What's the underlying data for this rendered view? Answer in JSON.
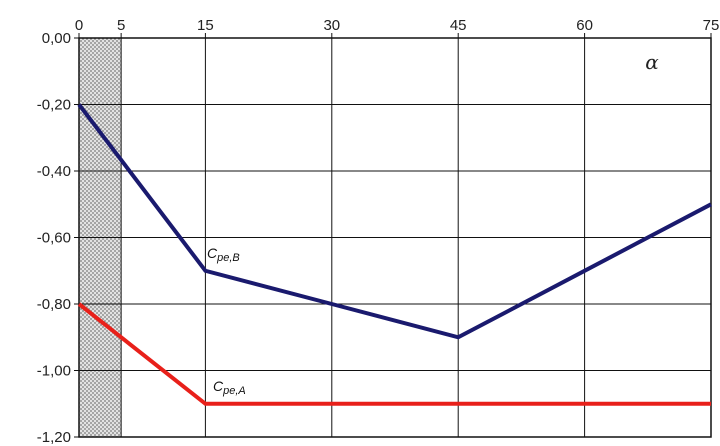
{
  "chart_data": {
    "type": "line",
    "title": "",
    "xlabel": "α",
    "ylabel": "",
    "xlim": [
      0,
      75
    ],
    "ylim": [
      -1.2,
      0.0
    ],
    "x_ticks": [
      0,
      5,
      15,
      30,
      45,
      60,
      75
    ],
    "x_tick_labels": [
      "0",
      "5",
      "15",
      "30",
      "45",
      "60",
      "75"
    ],
    "y_ticks": [
      0.0,
      -0.2,
      -0.4,
      -0.6,
      -0.8,
      -1.0,
      -1.2
    ],
    "y_tick_labels": [
      "0,00",
      "-0,20",
      "-0,40",
      "-0,60",
      "-0,80",
      "-1,00",
      "-1,20"
    ],
    "x_axis_position": "top",
    "grid": true,
    "hatched_region": {
      "x_from": 0,
      "x_to": 5
    },
    "series": [
      {
        "label_main": "C",
        "label_sub": "pe,B",
        "color": "#1a1a6e",
        "x": [
          0,
          15,
          30,
          45,
          60,
          75
        ],
        "y": [
          -0.2,
          -0.7,
          -0.8,
          -0.9,
          -0.7,
          -0.5
        ]
      },
      {
        "label_main": "C",
        "label_sub": "pe,A",
        "color": "#e8201a",
        "x": [
          0,
          15,
          30,
          45,
          60,
          75
        ],
        "y": [
          -0.8,
          -1.1,
          -1.1,
          -1.1,
          -1.1,
          -1.1
        ]
      }
    ]
  }
}
